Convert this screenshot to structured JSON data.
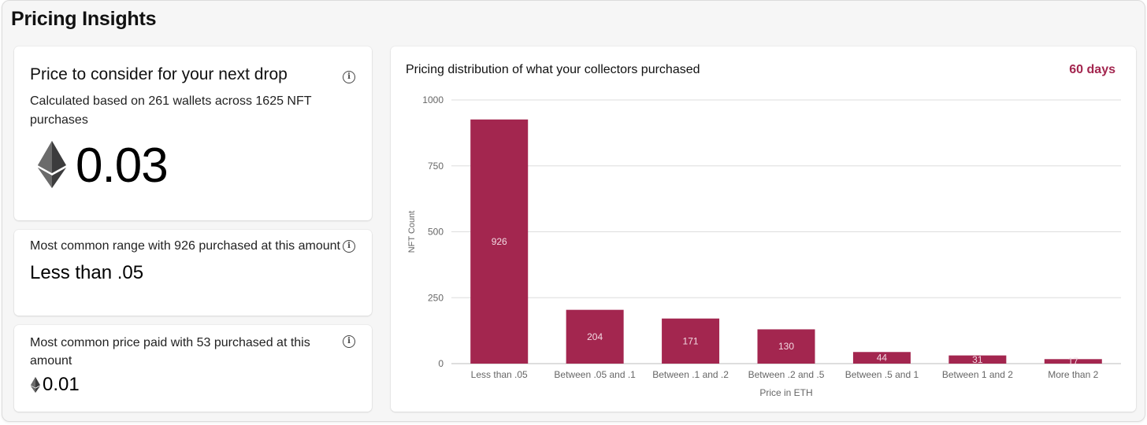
{
  "header": {
    "title": "Pricing Insights"
  },
  "next_drop": {
    "title": "Price to consider for your next drop",
    "subtitle": "Calculated based on 261 wallets across 1625 NFT purchases",
    "value": "0.03",
    "icon": "ethereum-icon"
  },
  "common_range": {
    "title": "Most common range with 926 purchased at this amount",
    "value": "Less than .05"
  },
  "common_price": {
    "title": "Most common price paid with 53 purchased at this amount",
    "value": "0.01",
    "icon": "ethereum-icon"
  },
  "distribution": {
    "title": "Pricing distribution of what your collectors purchased",
    "period": "60 days"
  },
  "colors": {
    "accent": "#a3264f",
    "bar": "#a3264f"
  },
  "chart_data": {
    "type": "bar",
    "categories": [
      "Less than .05",
      "Between .05 and .1",
      "Between .1 and .2",
      "Between .2 and .5",
      "Between .5 and 1",
      "Between 1 and 2",
      "More than 2"
    ],
    "values": [
      926,
      204,
      171,
      130,
      44,
      31,
      17
    ],
    "xlabel": "Price in ETH",
    "ylabel": "NFT Count",
    "ylim": [
      0,
      1000
    ],
    "yticks": [
      0,
      250,
      500,
      750,
      1000
    ],
    "grid": true
  }
}
